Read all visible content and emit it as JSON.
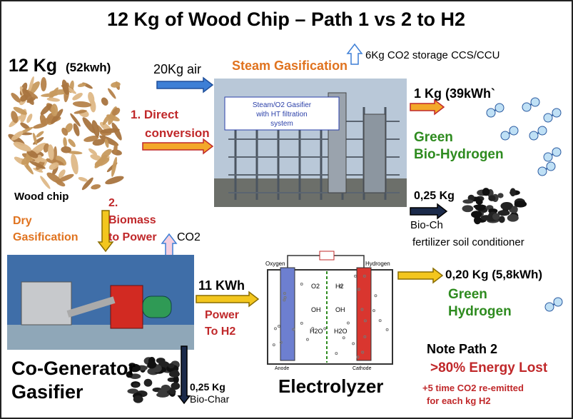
{
  "title": "12 Kg of Wood Chip – Path  1 vs 2  to H2",
  "feedstock": {
    "amount": "12 Kg",
    "energy": "(52kwh)",
    "label": "Wood chip"
  },
  "path1": {
    "label": [
      "1. Direct",
      "conversion"
    ],
    "air": "20Kg air",
    "process": "Steam Gasification",
    "gasifier_box": [
      "Steam/O2 Gasifier",
      "with HT filtration",
      "system"
    ],
    "co2": "6Kg CO2 storage CCS/CCU",
    "h2_amount": "1 Kg (39kWh`",
    "h2_label": [
      "Green",
      "Bio-Hydrogen"
    ],
    "char_amount": "0,25 Kg",
    "char_label": "Bio-Ch",
    "char_use": "fertilizer soil conditioner"
  },
  "path2": {
    "label": [
      "2.",
      "Biomass",
      "to Power"
    ],
    "process": [
      "Dry",
      "Gasification"
    ],
    "co2": "CO2",
    "unit": [
      "Co-Generator",
      "Gasifier"
    ],
    "char": [
      "0,25 Kg",
      "Bio-Char"
    ],
    "power": "11 KWh",
    "power_label": [
      "Power",
      "To H2"
    ],
    "h2_amount": "0,20 Kg (5,8kWh)",
    "h2_label": [
      "Green",
      "Hydrogen"
    ]
  },
  "electrolyzer": {
    "title": "Electrolyzer",
    "oxygen": "Oxygen",
    "hydrogen": "Hydrogen",
    "o2": "O2",
    "h2": "H2",
    "oh": [
      "OH",
      "OH"
    ],
    "h2o": [
      "H2O",
      "H2O"
    ],
    "anode": "Anode",
    "cathode": "Cathode"
  },
  "note": {
    "title": "Note Path 2",
    "loss": ">80% Energy Lost",
    "co2": [
      "+5 time CO2  re-emitted",
      "for each kg H2"
    ]
  }
}
